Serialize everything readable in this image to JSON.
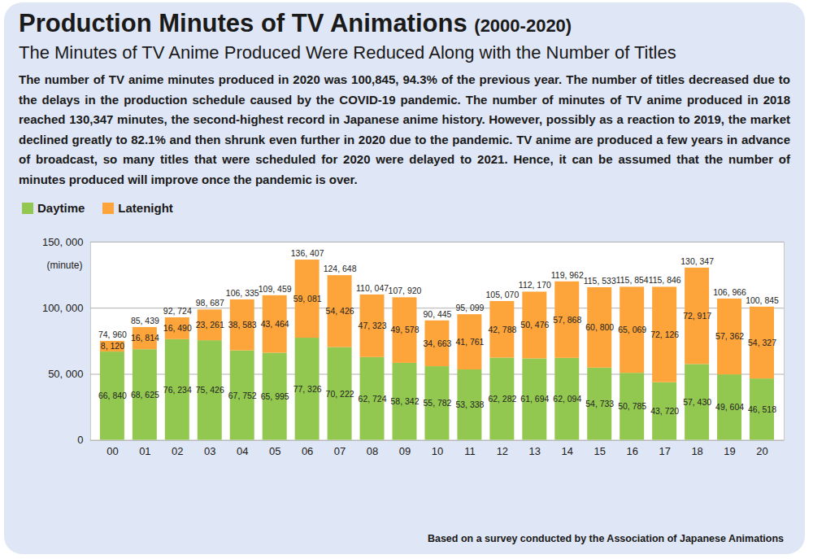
{
  "chart_data": {
    "type": "bar",
    "title": "Production Minutes of TV Animations",
    "title_note": "(2000-2020)",
    "subtitle": "The Minutes of TV Anime Produced Were Reduced Along with the Number of Titles",
    "description": "The number of TV anime minutes produced in 2020 was 100,845, 94.3% of the previous year. The number of titles decreased due to the delays in the production schedule caused by the COVID-19 pandemic. The number of minutes of TV anime produced in 2018 reached 130,347 minutes, the second-highest record in Japanese anime history. However, possibly as a reaction to 2019, the market declined greatly to 82.1% and then shrunk even further in 2020 due to the pandemic. TV anime are produced a few years in advance of broadcast, so many titles that were scheduled for 2020 were delayed to 2021. Hence, it can be assumed that the number of minutes produced will improve once the pandemic is over.",
    "source": "Based on a survey conducted by the Association of Japanese Animations",
    "y_label": "(minute)",
    "categories": [
      "00",
      "01",
      "02",
      "03",
      "04",
      "05",
      "06",
      "07",
      "08",
      "09",
      "10",
      "11",
      "12",
      "13",
      "14",
      "15",
      "16",
      "17",
      "18",
      "19",
      "20"
    ],
    "series": [
      {
        "name": "Daytime",
        "color": "#92c850",
        "values": [
          66840,
          68625,
          76234,
          75426,
          67752,
          65995,
          77326,
          70222,
          62724,
          58342,
          55782,
          53338,
          62282,
          61694,
          62094,
          54733,
          50785,
          43720,
          57430,
          49604,
          46518
        ],
        "value_labels": [
          "66, 840",
          "68, 625",
          "76, 234",
          "75, 426",
          "67, 752",
          "65, 995",
          "77, 326",
          "70, 222",
          "62, 724",
          "58, 342",
          "55, 782",
          "53, 338",
          "62, 282",
          "61, 694",
          "62, 094",
          "54, 733",
          "50, 785",
          "43, 720",
          "57, 430",
          "49, 604",
          "46, 518"
        ]
      },
      {
        "name": "Latenight",
        "color": "#fda43a",
        "values": [
          8120,
          16814,
          16490,
          23261,
          38583,
          43464,
          59081,
          54426,
          47323,
          49578,
          34663,
          41761,
          42788,
          50476,
          57868,
          60800,
          65069,
          72126,
          72917,
          57362,
          54327
        ],
        "value_labels": [
          "8, 120",
          "16, 814",
          "16, 490",
          "23, 261",
          "38, 583",
          "43, 464",
          "59, 081",
          "54, 426",
          "47, 323",
          "49, 578",
          "34, 663",
          "41, 761",
          "42, 788",
          "50, 476",
          "57, 868",
          "60, 800",
          "65, 069",
          "72, 126",
          "72, 917",
          "57, 362",
          "54, 327"
        ]
      }
    ],
    "totals": {
      "values": [
        74960,
        85439,
        92724,
        98687,
        106335,
        109459,
        136407,
        124648,
        110047,
        107920,
        90445,
        95099,
        105070,
        112170,
        119962,
        115533,
        115854,
        115846,
        130347,
        106966,
        100845
      ],
      "value_labels": [
        "74, 960",
        "85, 439",
        "92, 724",
        "98, 687",
        "106, 335",
        "109, 459",
        "136, 407",
        "124, 648",
        "110, 047",
        "107, 920",
        "90, 445",
        "95, 099",
        "105, 070",
        "112, 170",
        "119, 962",
        "115, 533",
        "115, 854",
        "115, 846",
        "130, 347",
        "106, 966",
        "100, 845"
      ]
    },
    "ylim": [
      0,
      150000
    ],
    "yticks": [
      0,
      {
        "value": 50000,
        "label": "50, 000"
      },
      {
        "value": 100000,
        "label": "100, 000"
      },
      {
        "value": 150000,
        "label": "150, 000"
      }
    ],
    "grid": true,
    "stacked": true,
    "data_labels": true,
    "legend": "top-left"
  }
}
